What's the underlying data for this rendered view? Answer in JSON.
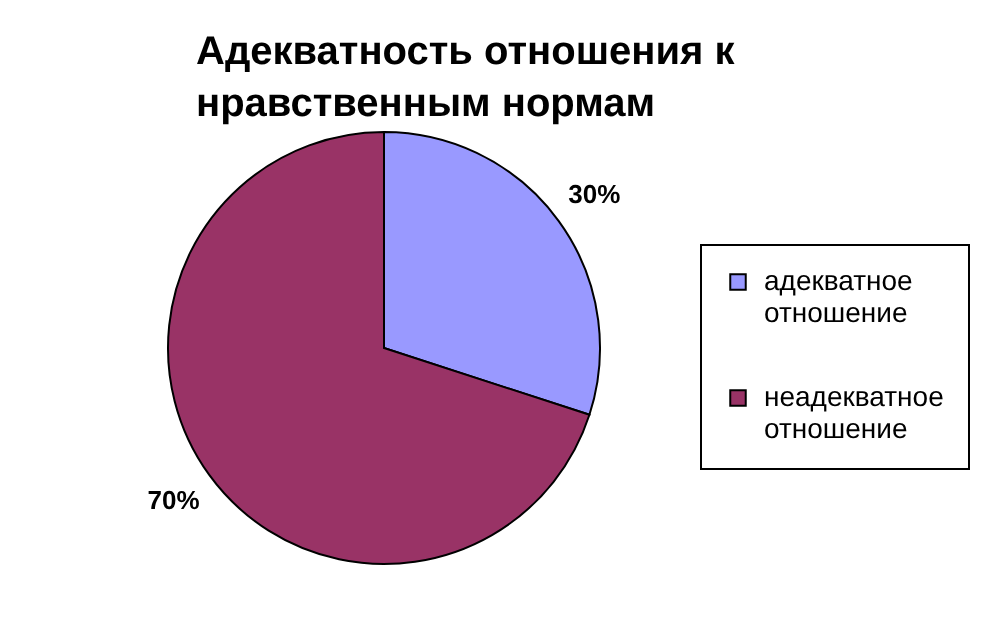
{
  "chart_data": {
    "type": "pie",
    "title": "Адекватность отношения к нравственным нормам",
    "categories": [
      "адекватное отношение",
      "неадекватное отношение"
    ],
    "values": [
      30,
      70
    ],
    "colors": [
      "#9999ff",
      "#993366"
    ],
    "value_labels": [
      "30%",
      "70%"
    ],
    "legend": "right"
  }
}
